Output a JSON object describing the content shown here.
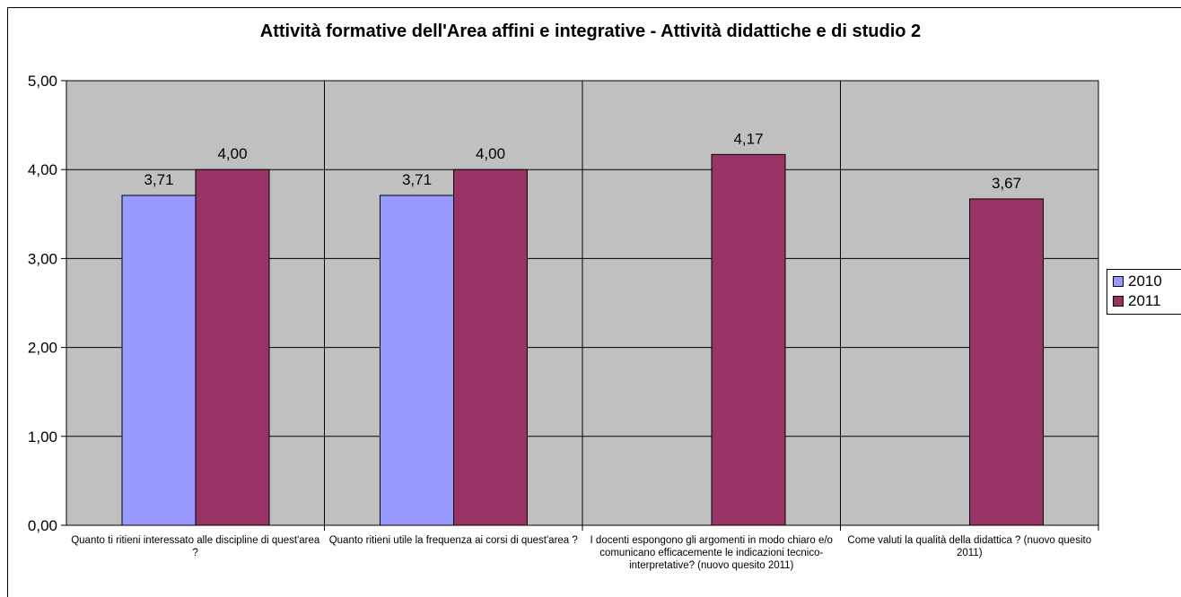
{
  "chart_data": {
    "type": "bar",
    "title": "Attività formative dell'Area affini e integrative - Attività didattiche e di studio 2",
    "categories": [
      "Quanto ti ritieni interessato alle discipline di quest'area ?",
      "Quanto ritieni utile la frequenza ai corsi di quest'area ?",
      "I docenti espongono gli argomenti in modo chiaro e/o comunicano efficacemente le indicazioni tecnico-interpretative? (nuovo quesito 2011)",
      "Come valuti la qualità della didattica ? (nuovo quesito 2011)"
    ],
    "series": [
      {
        "name": "2010",
        "color": "#9999ff",
        "values": [
          3.71,
          3.71,
          null,
          null
        ],
        "labels": [
          "3,71",
          "3,71",
          "",
          ""
        ]
      },
      {
        "name": "2011",
        "color": "#993366",
        "values": [
          4.0,
          4.0,
          4.17,
          3.67
        ],
        "labels": [
          "4,00",
          "4,00",
          "4,17",
          "3,67"
        ]
      }
    ],
    "ylim": [
      0,
      5
    ],
    "yticks": [
      "0,00",
      "1,00",
      "2,00",
      "3,00",
      "4,00",
      "5,00"
    ],
    "grid": true,
    "plot_background": "#c0c0c0",
    "legend_position": "right"
  }
}
